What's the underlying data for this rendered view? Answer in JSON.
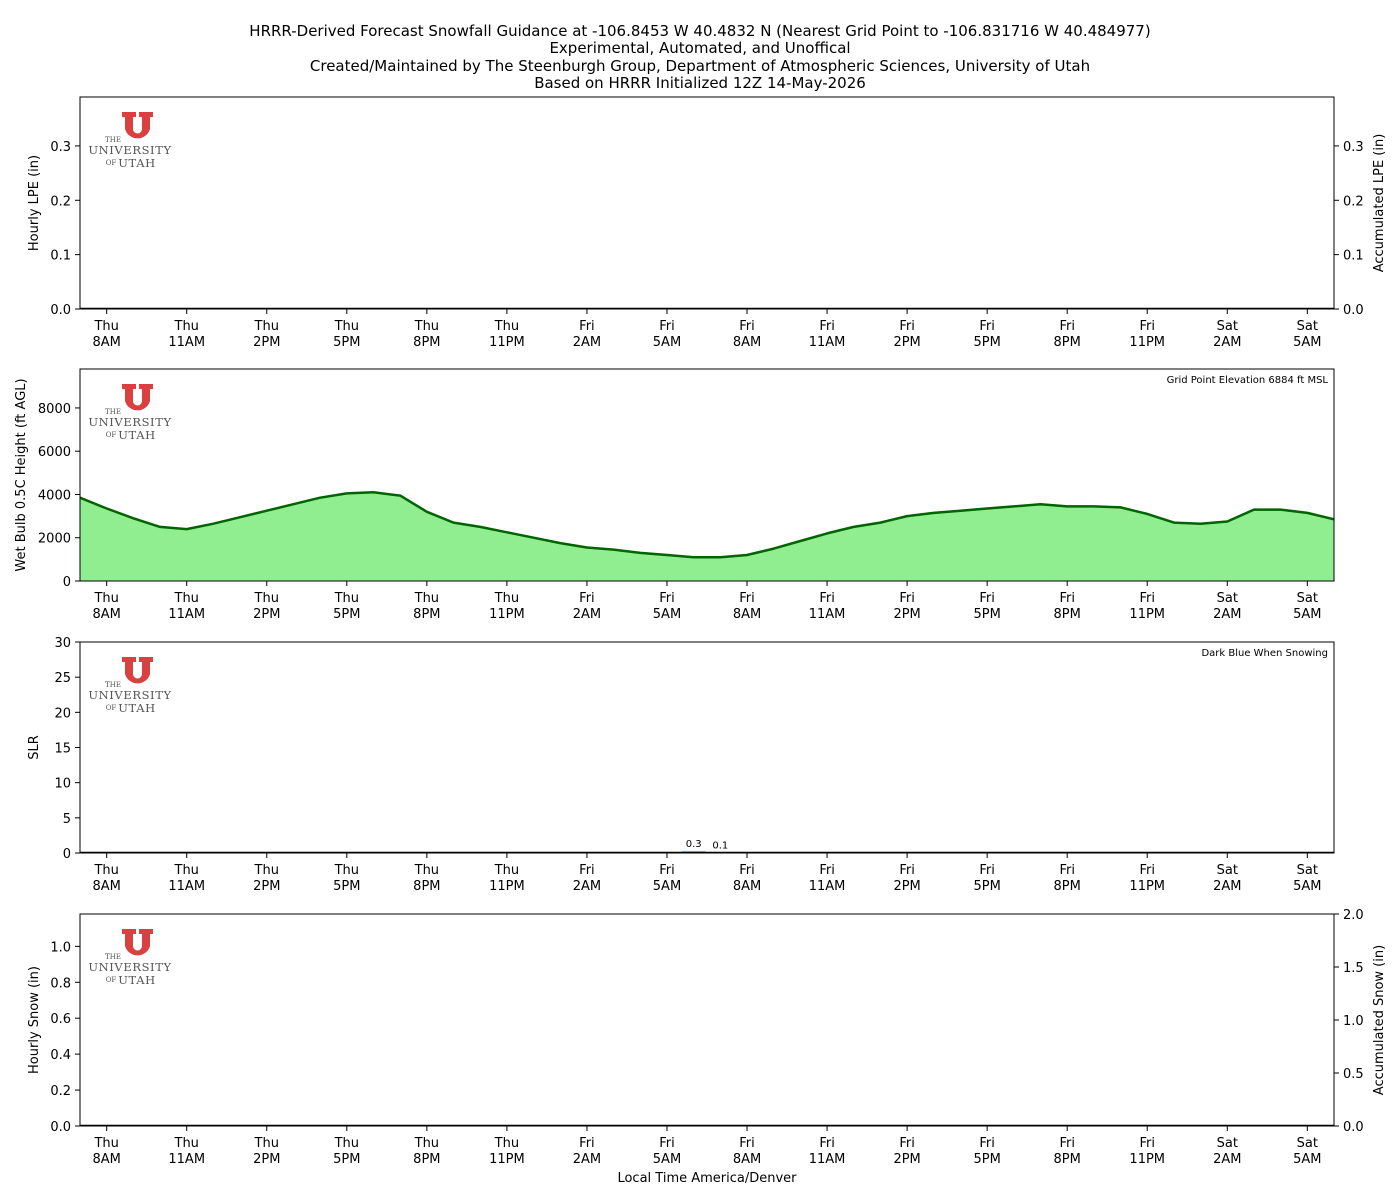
{
  "title_lines": [
    "HRRR-Derived Forecast Snowfall Guidance at -106.8453 W 40.4832 N (Nearest Grid Point to -106.831716 W 40.484977)",
    "Experimental, Automated, and Unoffical",
    "Created/Maintained by The Steenburgh Group, Department of Atmospheric Sciences, University of Utah",
    "Based on HRRR Initialized 12Z 14-May-2026"
  ],
  "logo": {
    "line1": "THE",
    "line2": "UNIVERSITY",
    "line3_of": "OF",
    "line3": "UTAH",
    "color": "#d9403f"
  },
  "time_axis": {
    "xlabel": "Local Time America/Denver",
    "hours_range": [
      -1,
      46
    ],
    "ticks": [
      {
        "h": 0,
        "day": "Thu",
        "time": "8AM"
      },
      {
        "h": 3,
        "day": "Thu",
        "time": "11AM"
      },
      {
        "h": 6,
        "day": "Thu",
        "time": "2PM"
      },
      {
        "h": 9,
        "day": "Thu",
        "time": "5PM"
      },
      {
        "h": 12,
        "day": "Thu",
        "time": "8PM"
      },
      {
        "h": 15,
        "day": "Thu",
        "time": "11PM"
      },
      {
        "h": 18,
        "day": "Fri",
        "time": "2AM"
      },
      {
        "h": 21,
        "day": "Fri",
        "time": "5AM"
      },
      {
        "h": 24,
        "day": "Fri",
        "time": "8AM"
      },
      {
        "h": 27,
        "day": "Fri",
        "time": "11AM"
      },
      {
        "h": 30,
        "day": "Fri",
        "time": "2PM"
      },
      {
        "h": 33,
        "day": "Fri",
        "time": "5PM"
      },
      {
        "h": 36,
        "day": "Fri",
        "time": "8PM"
      },
      {
        "h": 39,
        "day": "Fri",
        "time": "11PM"
      },
      {
        "h": 42,
        "day": "Sat",
        "time": "2AM"
      },
      {
        "h": 45,
        "day": "Sat",
        "time": "5AM"
      }
    ]
  },
  "chart_data": [
    {
      "type": "bar",
      "name": "lpe",
      "ylabel": "Hourly LPE (in)",
      "y2label": "Accumulated LPE (in)",
      "ylim": [
        0,
        0.39
      ],
      "yticks": [
        0.0,
        0.1,
        0.2,
        0.3
      ],
      "yticks_labels": [
        "0.0",
        "0.1",
        "0.2",
        "0.3"
      ],
      "y2lim": [
        0,
        0.39
      ],
      "y2ticks": [
        0.0,
        0.1,
        0.2,
        0.3
      ],
      "y2ticks_labels": [
        "0.0",
        "0.1",
        "0.2",
        "0.3"
      ],
      "hourly": [],
      "accumulated": [],
      "grid": false
    },
    {
      "type": "area",
      "name": "wetbulb",
      "ylabel": "Wet Bulb 0.5C Height (ft AGL)",
      "ylim": [
        0,
        9800
      ],
      "yticks": [
        0,
        2000,
        4000,
        6000,
        8000
      ],
      "yticks_labels": [
        "0",
        "2000",
        "4000",
        "6000",
        "8000"
      ],
      "annotation": "Grid Point Elevation 6884 ft MSL",
      "fill_color": "#90ee90",
      "line_color": "#006400",
      "x": [
        -1,
        0,
        1,
        2,
        3,
        4,
        5,
        6,
        7,
        8,
        9,
        10,
        11,
        12,
        13,
        14,
        15,
        16,
        17,
        18,
        19,
        20,
        21,
        22,
        23,
        24,
        25,
        26,
        27,
        28,
        29,
        30,
        31,
        32,
        33,
        34,
        35,
        36,
        37,
        38,
        39,
        40,
        41,
        42,
        43,
        44,
        45,
        46
      ],
      "values": [
        3850,
        3350,
        2900,
        2500,
        2400,
        2650,
        2950,
        3250,
        3550,
        3850,
        4050,
        4100,
        3950,
        3200,
        2700,
        2500,
        2250,
        2000,
        1750,
        1550,
        1450,
        1300,
        1200,
        1100,
        1100,
        1200,
        1500,
        1850,
        2200,
        2500,
        2700,
        3000,
        3150,
        3250,
        3350,
        3450,
        3550,
        3450,
        3450,
        3400,
        3100,
        2700,
        2650,
        2750,
        3300,
        3300,
        3150,
        2850
      ],
      "grid": false
    },
    {
      "type": "bar",
      "name": "slr",
      "ylabel": "SLR",
      "ylim": [
        0,
        30
      ],
      "yticks": [
        0,
        5,
        10,
        15,
        20,
        25,
        30
      ],
      "yticks_labels": [
        "0",
        "5",
        "10",
        "15",
        "20",
        "25",
        "30"
      ],
      "annotation": "Dark Blue When Snowing",
      "x": [
        22,
        23
      ],
      "values": [
        0.3,
        0.1
      ],
      "data_labels": [
        "0.3",
        "0.1"
      ],
      "bar_color": "#87cefa",
      "grid": false
    },
    {
      "type": "bar",
      "name": "snow",
      "ylabel": "Hourly Snow (in)",
      "y2label": "Accumulated Snow (in)",
      "ylim": [
        0,
        1.18
      ],
      "yticks": [
        0.0,
        0.2,
        0.4,
        0.6,
        0.8,
        1.0
      ],
      "yticks_labels": [
        "0.0",
        "0.2",
        "0.4",
        "0.6",
        "0.8",
        "1.0"
      ],
      "y2lim": [
        0,
        2.0
      ],
      "y2ticks": [
        0.0,
        0.5,
        1.0,
        1.5,
        2.0
      ],
      "y2ticks_labels": [
        "0.0",
        "0.5",
        "1.0",
        "1.5",
        "2.0"
      ],
      "hourly": [],
      "accumulated": [],
      "grid": false
    }
  ]
}
